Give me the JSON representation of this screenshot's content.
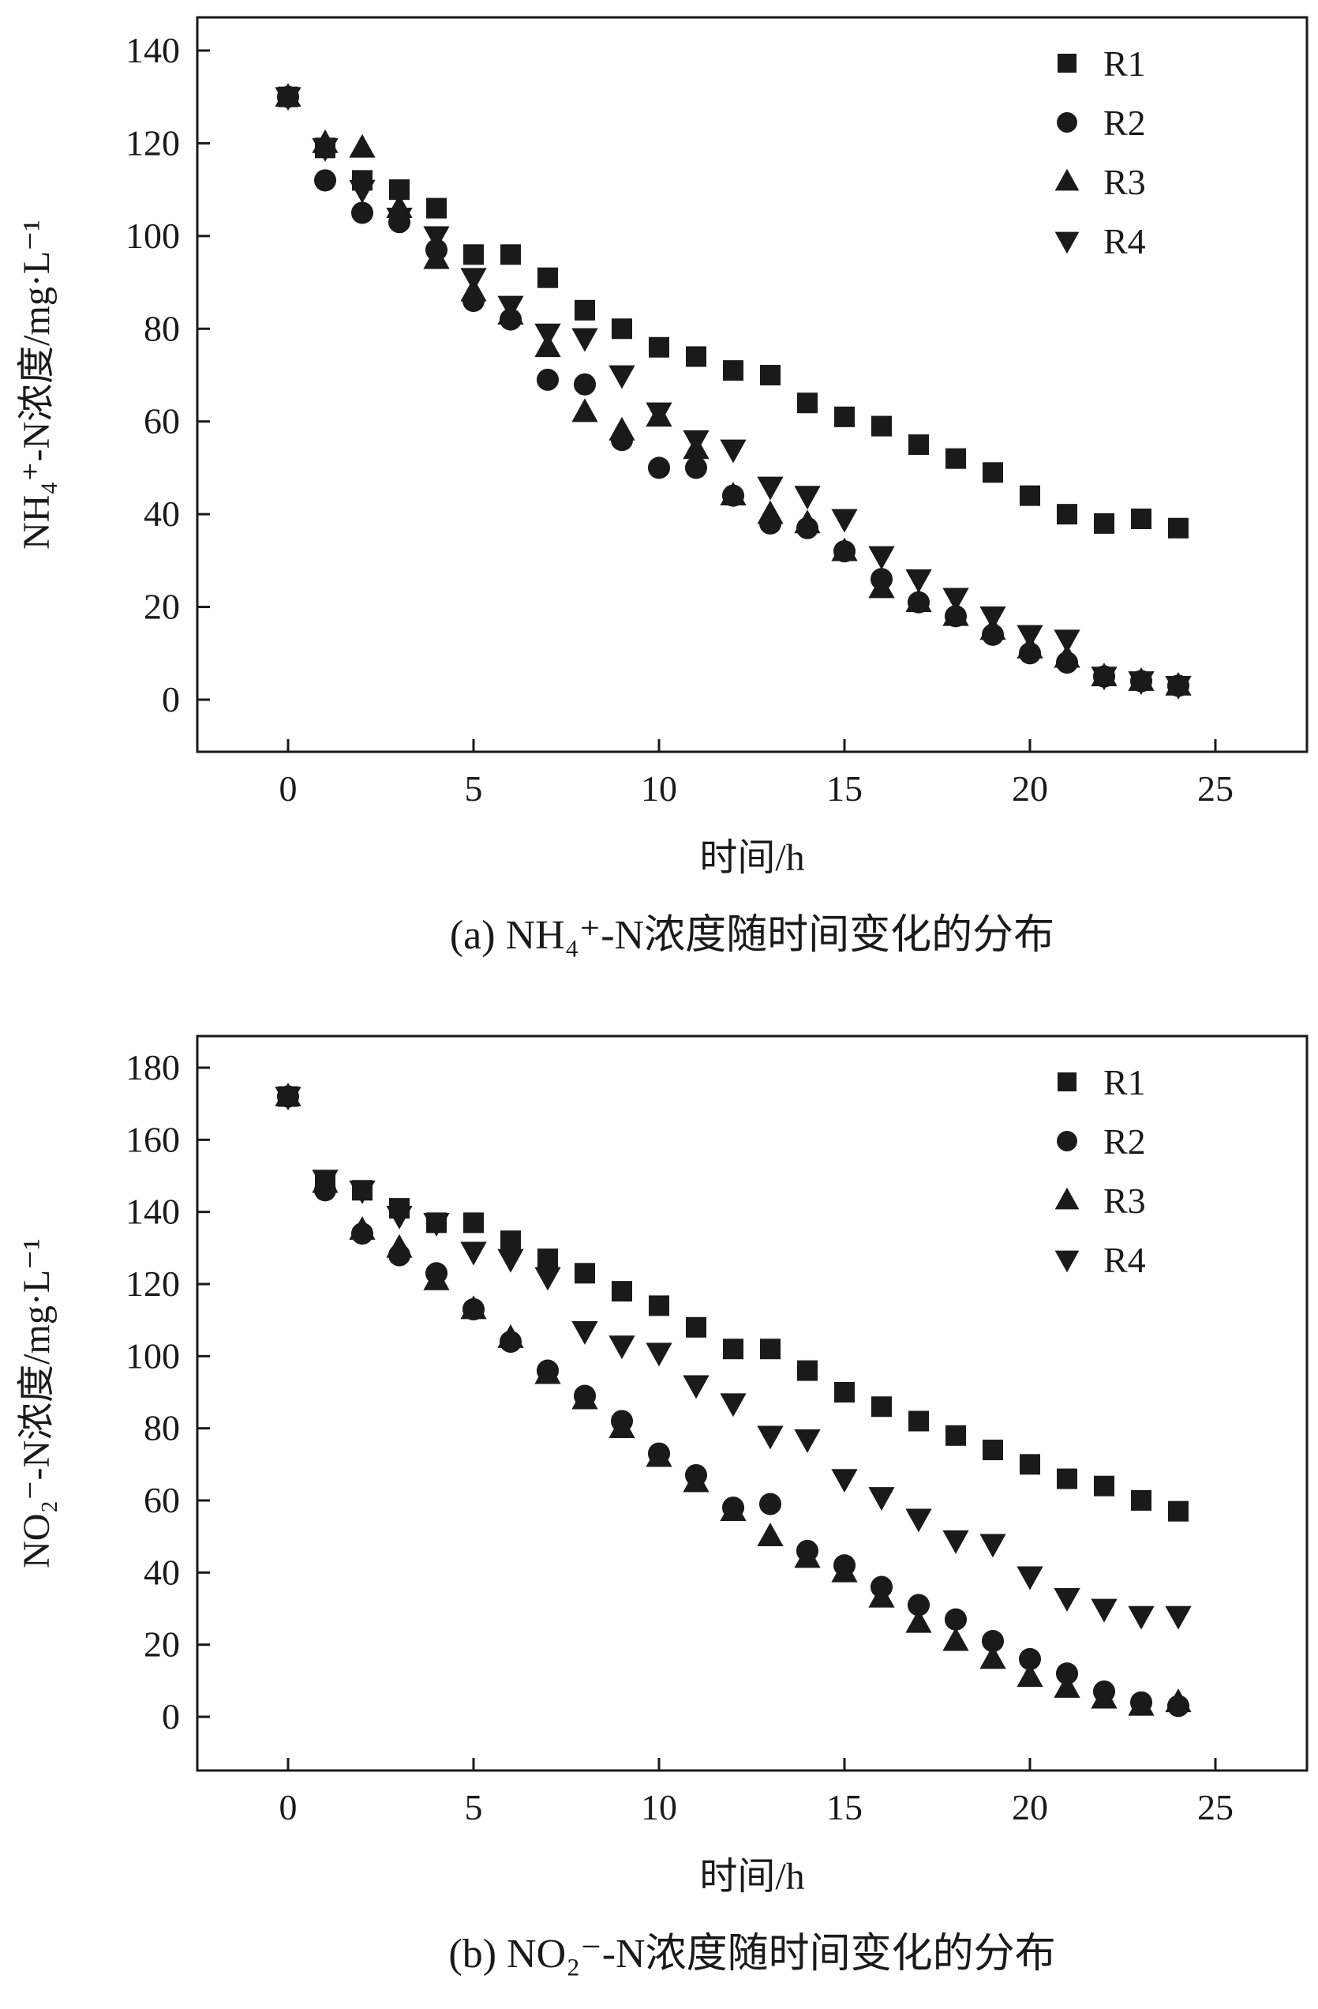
{
  "figure": {
    "background": "#ffffff",
    "ink": "#1a1a1a"
  },
  "chart_data": [
    {
      "name": "chart-a",
      "type": "scatter",
      "caption": "(a) NH₄⁺-N浓度随时间变化的分布",
      "xlabel": "时间/h",
      "ylabel": "NH₄⁺-N浓度/mg·L⁻¹",
      "xlim": [
        0,
        25
      ],
      "ylim": [
        0,
        140
      ],
      "xticks": [
        0,
        5,
        10,
        15,
        20,
        25
      ],
      "yticks": [
        0,
        20,
        40,
        60,
        80,
        100,
        120,
        140
      ],
      "legend_position": "top-right",
      "grid": false,
      "x": [
        0,
        1,
        2,
        3,
        4,
        5,
        6,
        7,
        8,
        9,
        10,
        11,
        12,
        13,
        14,
        15,
        16,
        17,
        18,
        19,
        20,
        21,
        22,
        23,
        24
      ],
      "series": [
        {
          "name": "R1",
          "marker": "square",
          "values": [
            130,
            119,
            112,
            110,
            106,
            96,
            96,
            91,
            84,
            80,
            76,
            74,
            71,
            70,
            64,
            61,
            59,
            55,
            52,
            49,
            44,
            40,
            38,
            39,
            37
          ]
        },
        {
          "name": "R2",
          "marker": "circle",
          "values": [
            130,
            112,
            105,
            103,
            97,
            86,
            82,
            69,
            68,
            56,
            50,
            50,
            44,
            38,
            37,
            32,
            26,
            21,
            18,
            14,
            10,
            8,
            5,
            4,
            3
          ]
        },
        {
          "name": "R3",
          "marker": "triangle-up",
          "values": [
            130,
            120,
            119,
            106,
            95,
            88,
            83,
            76,
            62,
            58,
            61,
            54,
            44,
            40,
            38,
            32,
            24,
            21,
            18,
            15,
            11,
            9,
            5,
            4,
            3
          ]
        },
        {
          "name": "R4",
          "marker": "triangle-down",
          "values": [
            130,
            119,
            110,
            104,
            100,
            91,
            85,
            79,
            78,
            70,
            62,
            56,
            54,
            46,
            44,
            39,
            31,
            26,
            22,
            18,
            14,
            13,
            5,
            4,
            3
          ]
        }
      ]
    },
    {
      "name": "chart-b",
      "type": "scatter",
      "caption": "(b) NO₂⁻-N浓度随时间变化的分布",
      "xlabel": "时间/h",
      "ylabel": "NO₂⁻-N浓度/mg·L⁻¹",
      "xlim": [
        0,
        25
      ],
      "ylim": [
        0,
        180
      ],
      "xticks": [
        0,
        5,
        10,
        15,
        20,
        25
      ],
      "yticks": [
        0,
        20,
        40,
        60,
        80,
        100,
        120,
        140,
        160,
        180
      ],
      "legend_position": "top-right",
      "grid": false,
      "x": [
        0,
        1,
        2,
        3,
        4,
        5,
        6,
        7,
        8,
        9,
        10,
        11,
        12,
        13,
        14,
        15,
        16,
        17,
        18,
        19,
        20,
        21,
        22,
        23,
        24
      ],
      "series": [
        {
          "name": "R1",
          "marker": "square",
          "values": [
            172,
            148,
            146,
            141,
            137,
            137,
            132,
            127,
            123,
            118,
            114,
            108,
            102,
            102,
            96,
            90,
            86,
            82,
            78,
            74,
            70,
            66,
            64,
            60,
            57
          ]
        },
        {
          "name": "R2",
          "marker": "circle",
          "values": [
            172,
            146,
            134,
            128,
            123,
            113,
            104,
            96,
            89,
            82,
            73,
            67,
            58,
            59,
            46,
            42,
            36,
            31,
            27,
            21,
            16,
            12,
            7,
            4,
            3
          ]
        },
        {
          "name": "R3",
          "marker": "triangle-up",
          "values": [
            172,
            148,
            135,
            130,
            121,
            113,
            105,
            95,
            88,
            80,
            72,
            65,
            57,
            50,
            44,
            40,
            33,
            26,
            21,
            16,
            11,
            8,
            5,
            3,
            4
          ]
        },
        {
          "name": "R4",
          "marker": "triangle-down",
          "values": [
            172,
            149,
            146,
            139,
            137,
            129,
            127,
            122,
            107,
            103,
            101,
            92,
            87,
            78,
            77,
            66,
            61,
            55,
            49,
            48,
            39,
            33,
            30,
            28,
            28
          ]
        }
      ]
    }
  ]
}
